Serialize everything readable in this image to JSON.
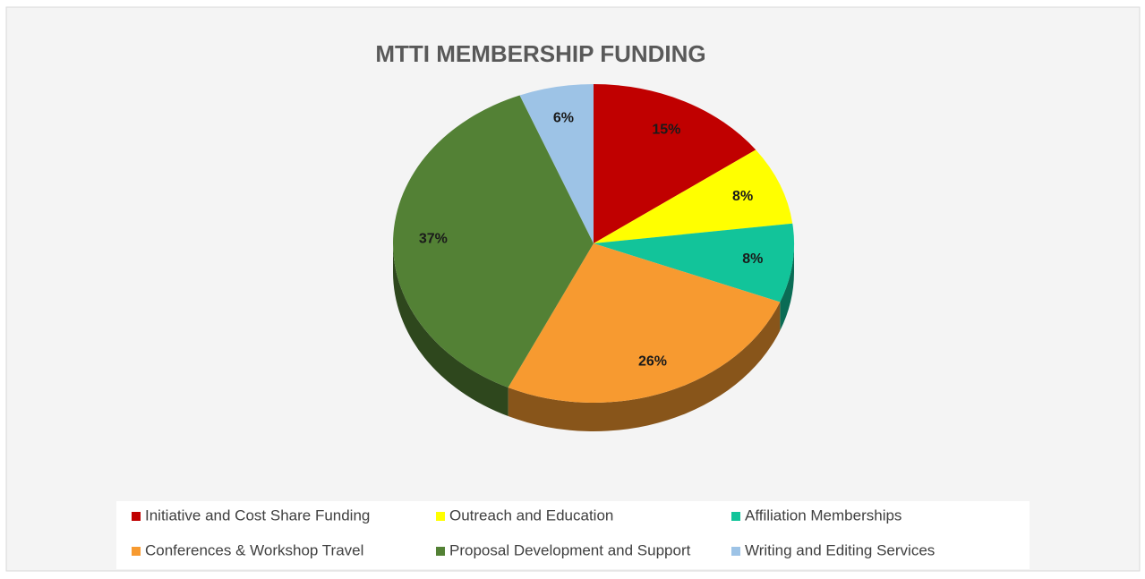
{
  "chart_data": {
    "type": "pie",
    "title": "MTTI MEMBERSHIP FUNDING",
    "categories": [
      "Initiative and Cost Share Funding",
      "Outreach and Education",
      "Affiliation Memberships",
      "Conferences & Workshop Travel",
      "Proposal Development and Support",
      "Writing and Editing Services"
    ],
    "values": [
      15,
      8,
      8,
      26,
      37,
      6
    ],
    "value_labels": [
      "15%",
      "8%",
      "8%",
      "26%",
      "37%",
      "6%"
    ],
    "colors": [
      "#c00000",
      "#ffff00",
      "#12c49a",
      "#f79a30",
      "#538135",
      "#9dc3e6"
    ],
    "legend": "bottom"
  }
}
